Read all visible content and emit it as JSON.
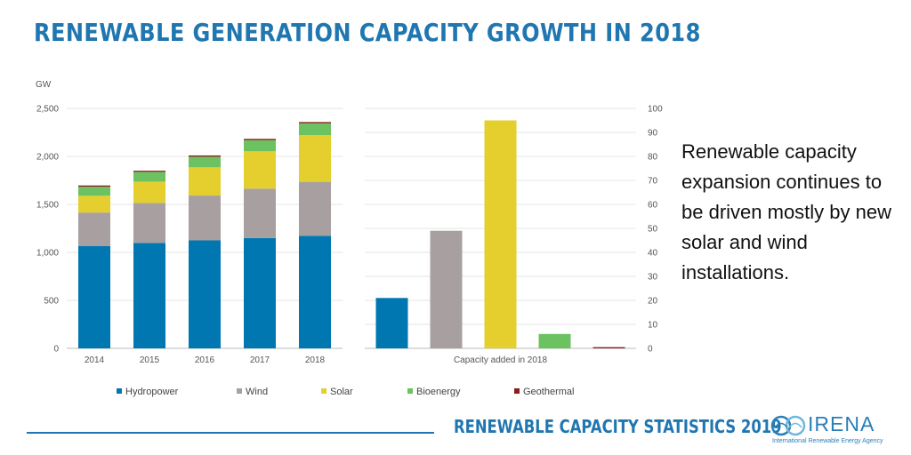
{
  "header": {
    "title": "RENEWABLE GENERATION CAPACITY GROWTH IN 2018"
  },
  "side_text": "Renewable capacity expansion continues to be driven mostly by new solar and wind installations.",
  "footer": {
    "text": "RENEWABLE CAPACITY STATISTICS 2019"
  },
  "logo": {
    "word": "IRENA",
    "subtitle": "International Renewable Energy Agency"
  },
  "colors": {
    "Hydropower": "#0077b0",
    "Wind": "#a89fa1",
    "Solar": "#e4cf2e",
    "Bioenergy": "#6cc160",
    "Geothermal": "#8c1c1c",
    "brand": "#1f76b0"
  },
  "chart_data": [
    {
      "type": "bar",
      "stacked": true,
      "ylabel": "GW",
      "xlabel": "",
      "categories": [
        "2014",
        "2015",
        "2016",
        "2017",
        "2018"
      ],
      "ylim": [
        0,
        2500
      ],
      "yticks": [
        0,
        500,
        1000,
        1500,
        2000,
        2500
      ],
      "ytick_labels": [
        "0",
        "500",
        "1,000",
        "1,500",
        "2,000",
        "2,500"
      ],
      "grid": true,
      "series": [
        {
          "name": "Hydropower",
          "values": [
            1065,
            1098,
            1125,
            1150,
            1172
          ]
        },
        {
          "name": "Wind",
          "values": [
            350,
            417,
            467,
            514,
            563
          ]
        },
        {
          "name": "Solar",
          "values": [
            175,
            222,
            294,
            389,
            486
          ]
        },
        {
          "name": "Bioenergy",
          "values": [
            95,
            102,
            111,
            117,
            124
          ]
        },
        {
          "name": "Geothermal",
          "values": [
            12,
            12,
            13,
            13,
            13
          ]
        }
      ]
    },
    {
      "type": "bar",
      "xlabel": "Capacity added in 2018",
      "ylim": [
        0,
        100
      ],
      "yticks": [
        0,
        10,
        20,
        30,
        40,
        50,
        60,
        70,
        80,
        90,
        100
      ],
      "ytick_labels": [
        "0",
        "10",
        "20",
        "30",
        "40",
        "50",
        "60",
        "70",
        "80",
        "90",
        "100"
      ],
      "yaxis_side": "right",
      "grid": true,
      "categories": [
        "Hydropower",
        "Wind",
        "Solar",
        "Bioenergy",
        "Geothermal"
      ],
      "values": [
        21,
        49,
        95,
        6,
        0.5
      ]
    }
  ],
  "legend": {
    "placement": "bottom",
    "items": [
      "Hydropower",
      "Wind",
      "Solar",
      "Bioenergy",
      "Geothermal"
    ]
  }
}
